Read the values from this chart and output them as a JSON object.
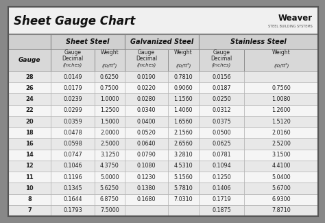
{
  "title": "Sheet Gauge Chart",
  "gauges": [
    "28",
    "26",
    "24",
    "22",
    "20",
    "18",
    "16",
    "14",
    "12",
    "11",
    "10",
    "8",
    "7"
  ],
  "sheet_steel_dec": [
    "0.0149",
    "0.0179",
    "0.0239",
    "0.0299",
    "0.0359",
    "0.0478",
    "0.0598",
    "0.0747",
    "0.1046",
    "0.1196",
    "0.1345",
    "0.1644",
    "0.1793"
  ],
  "sheet_steel_wt": [
    "0.6250",
    "0.7500",
    "1.0000",
    "1.2500",
    "1.5000",
    "2.0000",
    "2.5000",
    "3.1250",
    "4.3750",
    "5.0000",
    "5.6250",
    "6.8750",
    "7.5000"
  ],
  "galv_dec": [
    "0.0190",
    "0.0220",
    "0.0280",
    "0.0340",
    "0.0400",
    "0.0520",
    "0.0640",
    "0.0790",
    "0.1080",
    "0.1230",
    "0.1380",
    "0.1680",
    ""
  ],
  "galv_wt": [
    "0.7810",
    "0.9060",
    "1.1560",
    "1.4060",
    "1.6560",
    "2.1560",
    "2.6560",
    "3.2810",
    "4.5310",
    "5.1560",
    "5.7810",
    "7.0310",
    ""
  ],
  "stainless_dec": [
    "0.0156",
    "0.0187",
    "0.0250",
    "0.0312",
    "0.0375",
    "0.0500",
    "0.0625",
    "0.0781",
    "0.1094",
    "0.1250",
    "0.1406",
    "0.1719",
    "0.1875"
  ],
  "stainless_wt": [
    "",
    "0.7560",
    "1.0080",
    "1.2600",
    "1.5120",
    "2.0160",
    "2.5200",
    "3.1500",
    "4.4100",
    "5.0400",
    "5.6700",
    "6.9300",
    "7.8710"
  ],
  "outer_bg": "#888888",
  "title_bg": "#f0f0f0",
  "group_hdr_bg": "#d0d0d0",
  "sub_hdr_bg": "#d8d8d8",
  "row_even_bg": "#e8e8e8",
  "row_odd_bg": "#f5f5f5",
  "border_dark": "#555555",
  "border_mid": "#888888",
  "border_light": "#aaaaaa"
}
